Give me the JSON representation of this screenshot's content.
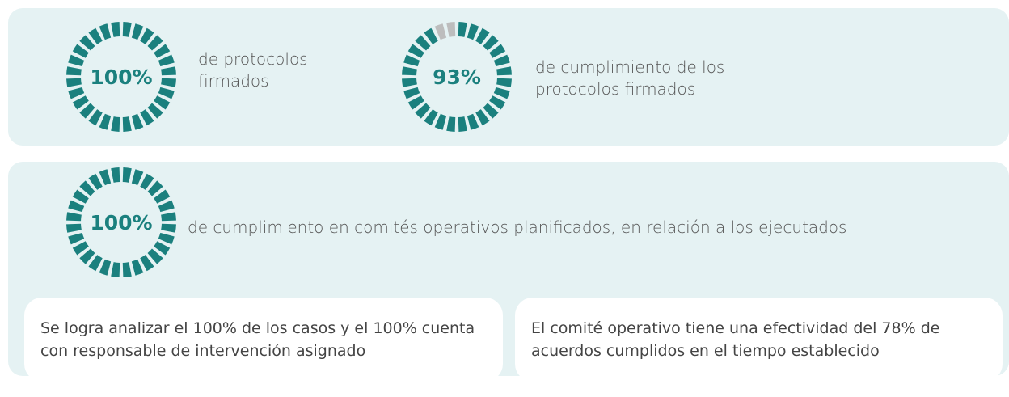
{
  "stats": [
    {
      "value": 100,
      "label": "100%",
      "text": "de protocolos firmados"
    },
    {
      "value": 93,
      "label": "93%",
      "text": "de cumplimiento de los protocolos firmados"
    },
    {
      "value": 100,
      "label": "100%",
      "text": "de cumplimiento en comités operativos planificados, en relación a los ejecutados"
    }
  ],
  "notes": [
    "Se logra analizar el 100% de los casos y el 100% cuenta con responsable de intervención asignado",
    "El comité operativo tiene una efectividad del 78% de acuerdos cumplidos en el tiempo establecido"
  ],
  "fill_color": "#1b807e",
  "empty_color": "#bdbdbd"
}
